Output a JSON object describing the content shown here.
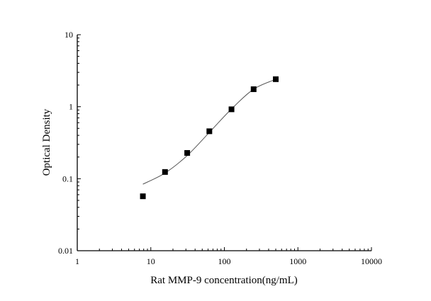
{
  "chart_data": {
    "type": "scatter",
    "title": "",
    "xlabel": "Rat MMP-9 concentration(ng/mL)",
    "ylabel": "Optical Density",
    "x_scale": "log",
    "y_scale": "log",
    "xlim": [
      1,
      10000
    ],
    "ylim": [
      0.01,
      10
    ],
    "x_ticks": [
      "1",
      "10",
      "100",
      "1000",
      "10000"
    ],
    "y_ticks": [
      "0.01",
      "0.1",
      "1",
      "10"
    ],
    "grid": false,
    "legend": "none",
    "series": [
      {
        "kind": "points",
        "marker": "square",
        "color": "#000000",
        "x": [
          7.8,
          15.6,
          31.25,
          62.5,
          125,
          250,
          500
        ],
        "y": [
          0.057,
          0.124,
          0.228,
          0.456,
          0.92,
          1.75,
          2.41
        ]
      },
      {
        "kind": "fit-line",
        "color": "#555555",
        "x": [
          7.8,
          15.6,
          31.25,
          62.5,
          125,
          250,
          500
        ],
        "y": [
          0.084,
          0.12,
          0.21,
          0.44,
          0.93,
          1.75,
          2.4
        ]
      }
    ]
  }
}
